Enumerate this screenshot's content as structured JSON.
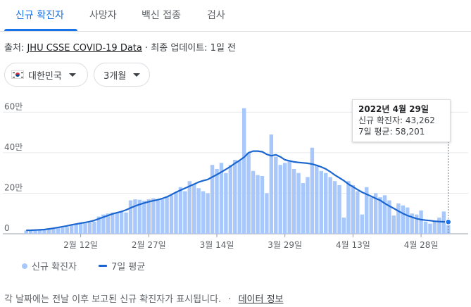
{
  "tabs": [
    {
      "label": "신규 확진자",
      "active": true
    },
    {
      "label": "사망자",
      "active": false
    },
    {
      "label": "백신 접종",
      "active": false
    },
    {
      "label": "검사",
      "active": false
    }
  ],
  "source": {
    "prefix": "출처:",
    "link": "JHU CSSE COVID-19 Data",
    "suffix": "· 최종 업데이트: 1일 전"
  },
  "filters": {
    "region": {
      "label": "대한민국",
      "flag_icon": "korea-flag-icon"
    },
    "period": {
      "label": "3개월"
    }
  },
  "tooltip": {
    "date": "2022년 4월 29일",
    "new_cases": "신규 확진자: 43,262",
    "avg7": "7일 평균: 58,201"
  },
  "legend": {
    "bars_label": "신규 확진자",
    "line_label": "7일 평균"
  },
  "footer": {
    "text": "각 날짜에는 전날 이후 보고된 신규 확진자가 표시됩니다.",
    "separator": "·",
    "link": "데이터 정보"
  },
  "colors": {
    "bar": "#a8c7fa",
    "line": "#1a66d1",
    "accent": "#1a73e8",
    "grid": "#e8eaed"
  },
  "chart_data": {
    "type": "bar",
    "ylim": [
      0,
      650000
    ],
    "y_ticks": [
      {
        "value": 0,
        "label": "0"
      },
      {
        "value": 200000,
        "label": "20만"
      },
      {
        "value": 400000,
        "label": "40만"
      },
      {
        "value": 600000,
        "label": "60만"
      }
    ],
    "x_ticks": [
      {
        "index": 12,
        "label": "2월 12일"
      },
      {
        "index": 27,
        "label": "2월 27일"
      },
      {
        "index": 42,
        "label": "3월 14일"
      },
      {
        "index": 57,
        "label": "3월 29일"
      },
      {
        "index": 72,
        "label": "4월 13일"
      },
      {
        "index": 87,
        "label": "4월 28일"
      }
    ],
    "series": [
      {
        "name": "신규 확진자",
        "kind": "bar",
        "values": [
          16000,
          17000,
          17500,
          18000,
          19000,
          22000,
          25000,
          28000,
          30000,
          33000,
          45000,
          48000,
          50000,
          52000,
          55000,
          60000,
          85000,
          95000,
          100000,
          105000,
          103000,
          110000,
          105000,
          165000,
          170000,
          168000,
          163000,
          170000,
          175000,
          165000,
          170000,
          185000,
          190000,
          205000,
          230000,
          210000,
          260000,
          245000,
          225000,
          210000,
          200000,
          340000,
          320000,
          350000,
          300000,
          340000,
          365000,
          360000,
          620000,
          400000,
          310000,
          290000,
          285000,
          200000,
          490000,
          380000,
          340000,
          350000,
          360000,
          320000,
          300000,
          250000,
          280000,
          425000,
          340000,
          310000,
          300000,
          280000,
          260000,
          240000,
          80000,
          260000,
          240000,
          210000,
          95000,
          230000,
          180000,
          200000,
          180000,
          190000,
          165000,
          90000,
          150000,
          140000,
          130000,
          100000,
          95000,
          115000,
          60000,
          50000,
          65000,
          80000,
          110000,
          43262
        ]
      },
      {
        "name": "7일 평균",
        "kind": "line",
        "values": [
          17000,
          17500,
          18500,
          19500,
          21000,
          24000,
          27000,
          31000,
          35000,
          39000,
          44000,
          48000,
          52000,
          56000,
          60000,
          66000,
          74000,
          82000,
          90000,
          98000,
          104000,
          110000,
          118000,
          128000,
          137000,
          145000,
          152000,
          158000,
          163000,
          168000,
          174000,
          182000,
          193000,
          205000,
          215000,
          225000,
          235000,
          245000,
          255000,
          262000,
          268000,
          280000,
          292000,
          305000,
          318000,
          332000,
          348000,
          362000,
          378000,
          400000,
          408000,
          408000,
          405000,
          392000,
          385000,
          390000,
          380000,
          365000,
          360000,
          355000,
          352000,
          350000,
          348000,
          344000,
          338000,
          330000,
          320000,
          306000,
          290000,
          276000,
          262000,
          245000,
          232000,
          218000,
          205000,
          195000,
          185000,
          175000,
          165000,
          150000,
          137000,
          125000,
          112000,
          100000,
          90000,
          82000,
          75000,
          70000,
          67000,
          65000,
          62000,
          60000,
          59000,
          58201
        ]
      }
    ]
  }
}
